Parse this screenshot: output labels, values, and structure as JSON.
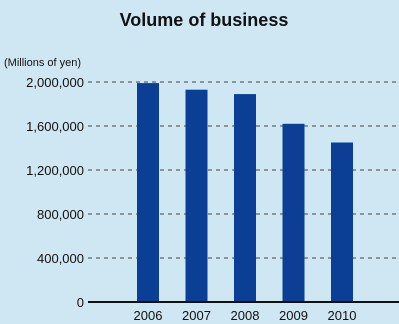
{
  "chart_data": {
    "type": "bar",
    "title": "Volume of business",
    "unit_label": "(Millions of yen)",
    "categories": [
      "2006",
      "2007",
      "2008",
      "2009",
      "2010"
    ],
    "values": [
      1990000,
      1930000,
      1890000,
      1620000,
      1450000
    ],
    "ylim": [
      0,
      2000000
    ],
    "yticks": [
      0,
      400000,
      800000,
      1200000,
      1600000,
      2000000
    ],
    "ytick_labels": [
      "0",
      "400,000",
      "800,000",
      "1,200,000",
      "1,600,000",
      "2,000,000"
    ],
    "grid": true,
    "bar_color": "#0b3f96",
    "background_color": "#cfe6f3"
  }
}
